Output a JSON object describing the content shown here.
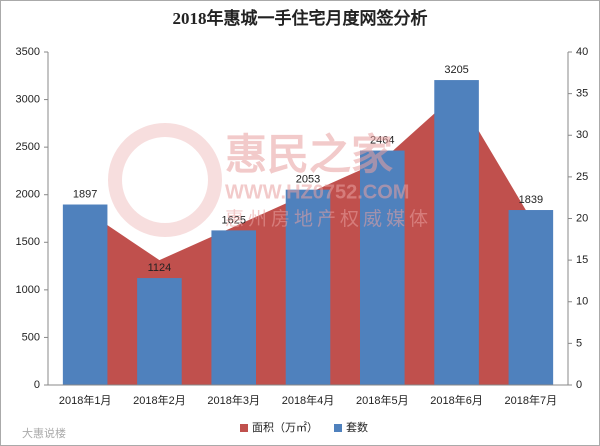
{
  "chart_data": {
    "type": "bar-area",
    "title": "2018年惠城一手住宅月度网签分析",
    "categories": [
      "2018年1月",
      "2018年2月",
      "2018年3月",
      "2018年4月",
      "2018年5月",
      "2018年6月",
      "2018年7月"
    ],
    "series": [
      {
        "name": "面积（万㎡）",
        "color": "#c0504d",
        "type": "area",
        "axis": "y2",
        "values": [
          21,
          15,
          19,
          23,
          27,
          35,
          20
        ]
      },
      {
        "name": "套数",
        "color": "#4f81bd",
        "type": "bar",
        "values": [
          1897,
          1124,
          1625,
          2053,
          2464,
          3205,
          1839
        ]
      }
    ],
    "ylim": [
      0,
      3500
    ],
    "yticks": [
      0,
      500,
      1000,
      1500,
      2000,
      2500,
      3000,
      3500
    ],
    "y2lim": [
      0,
      40
    ],
    "y2ticks": [
      0,
      5,
      10,
      15,
      20,
      25,
      30,
      35,
      40
    ],
    "legend": "bottom",
    "watermark": {
      "brand": "惠民之家",
      "url": "WWW.HZ0752.COM",
      "slogan": "惠州房地产权威媒体",
      "source": "大惠说楼"
    }
  }
}
